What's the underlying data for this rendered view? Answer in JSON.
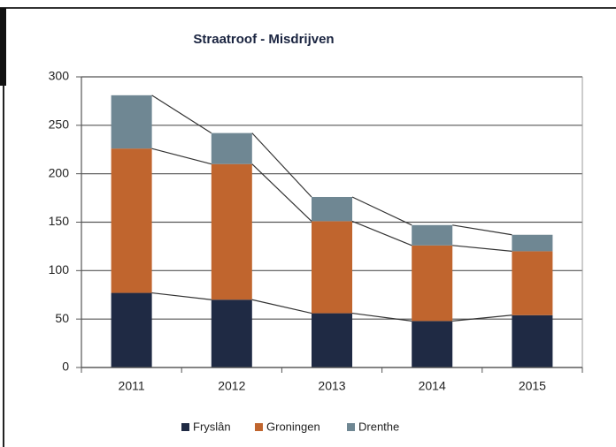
{
  "chart_data": {
    "type": "stacked_bar",
    "title": "Straatroof - Misdrijven",
    "categories": [
      "2011",
      "2012",
      "2013",
      "2014",
      "2015"
    ],
    "series": [
      {
        "name": "Fryslân",
        "color": "#1f2a44",
        "values": [
          77,
          70,
          56,
          48,
          54
        ]
      },
      {
        "name": "Groningen",
        "color": "#c0652e",
        "values": [
          149,
          140,
          95,
          78,
          66
        ]
      },
      {
        "name": "Drenthe",
        "color": "#6f8793",
        "values": [
          55,
          32,
          25,
          21,
          17
        ]
      }
    ],
    "ylim": [
      0,
      300
    ],
    "yticks": [
      0,
      50,
      100,
      150,
      200,
      250,
      300
    ],
    "grid": true,
    "legend": "bottom"
  }
}
